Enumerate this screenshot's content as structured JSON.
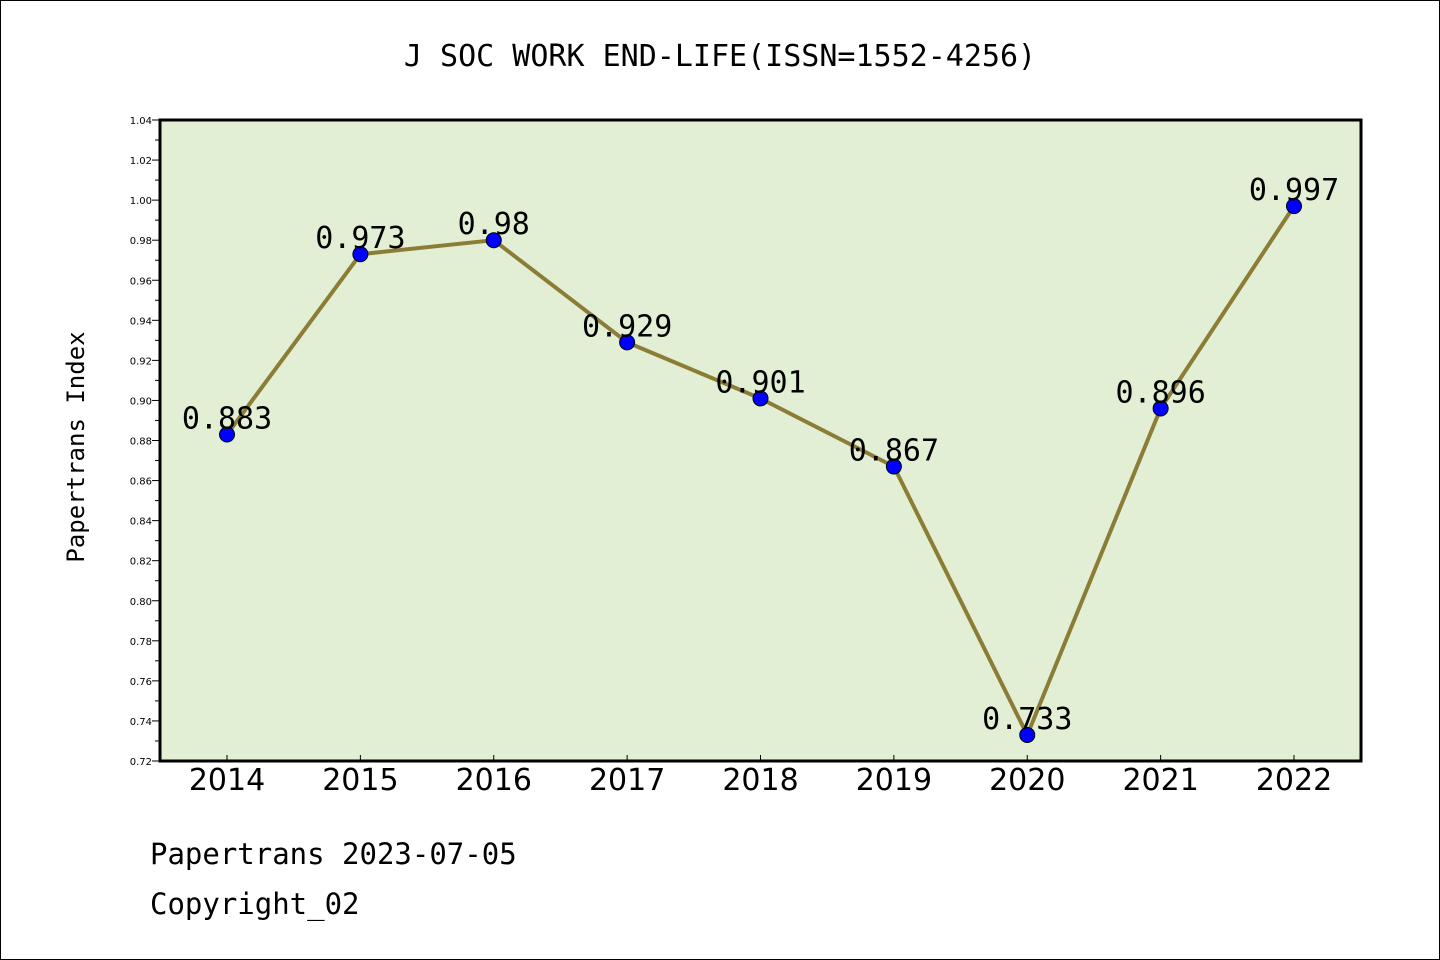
{
  "chart_data": {
    "type": "line",
    "title": "J SOC WORK END-LIFE(ISSN=1552-4256)",
    "xlabel": "",
    "ylabel": "Papertrans Index",
    "categories": [
      "2014",
      "2015",
      "2016",
      "2017",
      "2018",
      "2019",
      "2020",
      "2021",
      "2022"
    ],
    "series": [
      {
        "values": [
          0.883,
          0.973,
          0.98,
          0.929,
          0.901,
          0.867,
          0.733,
          0.896,
          0.997
        ],
        "labels": [
          "0.883",
          "0.973",
          "0.98",
          "0.929",
          "0.901",
          "0.867",
          "0.733",
          "0.896",
          "0.997"
        ]
      }
    ],
    "ylim": [
      0.72,
      1.04
    ],
    "yticks": [
      "0.72",
      "0.74",
      "0.76",
      "0.78",
      "0.80",
      "0.82",
      "0.84",
      "0.86",
      "0.88",
      "0.90",
      "0.92",
      "0.94",
      "0.96",
      "0.98",
      "1.00",
      "1.02",
      "1.04"
    ],
    "grid": false,
    "legend": "none",
    "colors": {
      "plot_background": "#e2efd5",
      "line": "#8b7d35",
      "marker": "#0000ff",
      "axes": "#000000"
    }
  },
  "footer": {
    "line1": "Papertrans 2023-07-05",
    "line2": "Copyright_02"
  }
}
